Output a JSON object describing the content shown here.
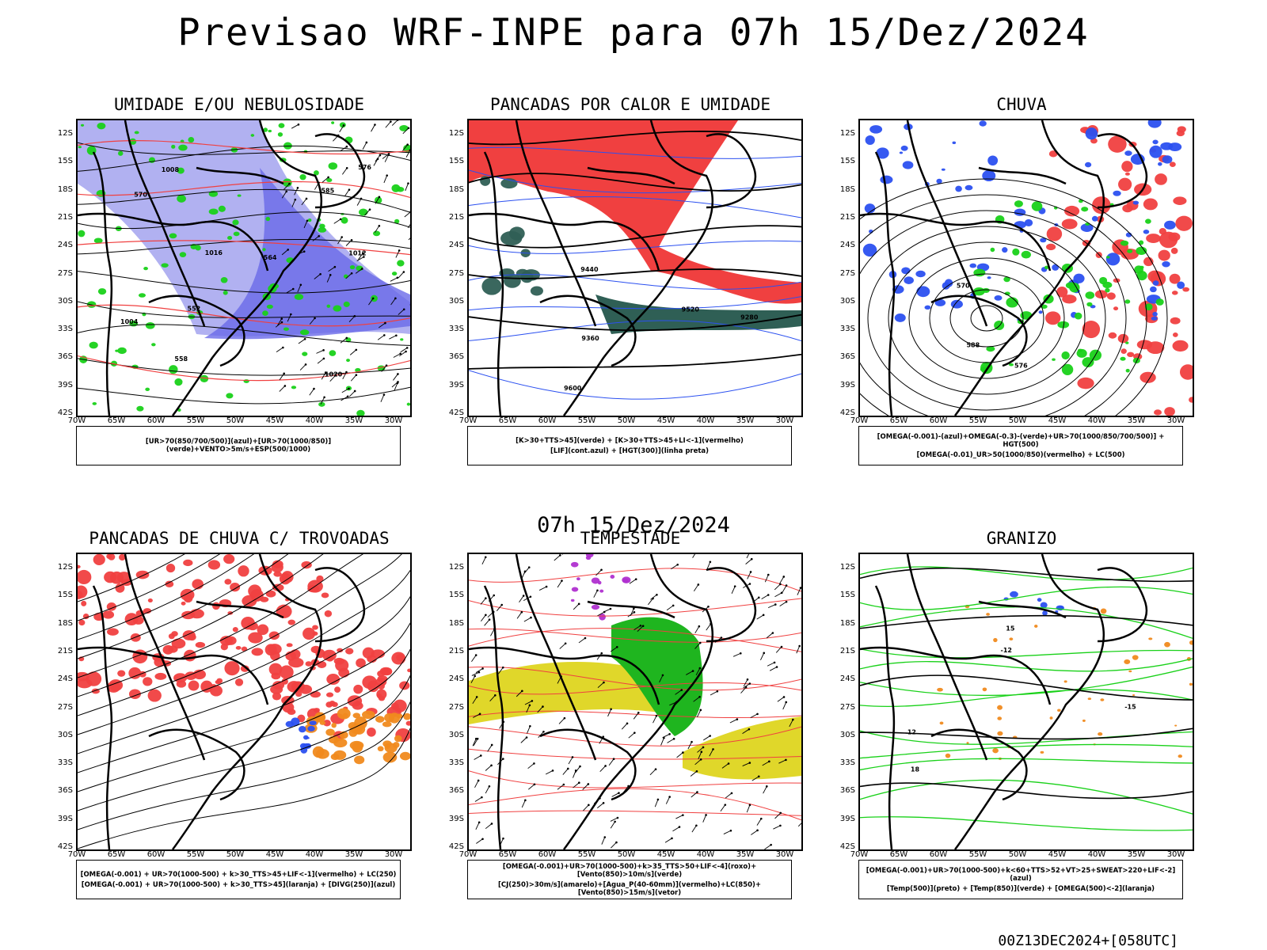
{
  "header": {
    "title": "Previsao WRF-INPE  para 07h 15/Dez/2024",
    "subtitle": "07h 15/Dez/2024",
    "footer": "00Z13DEC2024+[058UTC]"
  },
  "axes": {
    "lat": [
      "12S",
      "15S",
      "18S",
      "21S",
      "24S",
      "27S",
      "30S",
      "33S",
      "36S",
      "39S",
      "42S"
    ],
    "lon": [
      "70W",
      "65W",
      "60W",
      "55W",
      "50W",
      "45W",
      "40W",
      "35W",
      "30W"
    ]
  },
  "colors": {
    "blue": "#2b50f0",
    "lightblue": "#a8a8f0",
    "green": "#19d119",
    "red": "#f04040",
    "darkgreen": "#2f5f55",
    "yellow": "#e0d72a",
    "orange": "#f08a1e",
    "purple": "#b030d0"
  },
  "panels": [
    {
      "title": "UMIDADE E/OU NEBULOSIDADE",
      "legend": [
        "[UR>70(850/700/500)](azul)+[UR>70(1000/850)](verde)+VENTO>5m/s+ESP(500/1000)"
      ],
      "labels": [
        "1008",
        "1012",
        "1016",
        "1020",
        "1004",
        "570",
        "564",
        "558",
        "552",
        "576",
        "585"
      ]
    },
    {
      "title": "PANCADAS POR CALOR E UMIDADE",
      "legend": [
        "[K>30+TTS>45](verde) + [K>30+TTS>45+LI<-1](vermelho)",
        "[LIF](cont.azul) + [HGT(300)](linha preta)"
      ],
      "labels": [
        "9600",
        "9520",
        "9440",
        "9360",
        "9280"
      ]
    },
    {
      "title": "CHUVA",
      "legend": [
        "[OMEGA(-0.001)-(azul)+OMEGA(-0.3)-(verde)+UR>70(1000/850/700/500)] + HGT(500)",
        "[OMEGA(-0.01)_UR>50(1000/850)(vermelho) + LC(500)"
      ],
      "labels": [
        "588",
        "576",
        "570"
      ]
    },
    {
      "title": "PANCADAS DE CHUVA C/ TROVOADAS",
      "legend": [
        "[OMEGA(-0.001) + UR>70(1000-500) + k>30_TTS>45+LIF<-1](vermelho) + LC(250)",
        "[OMEGA(-0.001) + UR>70(1000-500) + k>30_TTS>45](laranja) + [DIVG(250)](azul)"
      ],
      "labels": []
    },
    {
      "title": "TEMPESTADE",
      "legend": [
        "[OMEGA(-0.001)+UR>70(1000-500)+k>35_TTS>50+LIF<-4](roxo)+[Vento(850)>10m/s](verde)",
        "[CJ(250)>30m/s](amarelo)+[Agua_P(40-60mm)](vermelho)+LC(850)+[Vento(850)>15m/s](vetor)"
      ],
      "labels": []
    },
    {
      "title": "GRANIZO",
      "legend": [
        "[OMEGA(-0.001)+UR>70(1000-500)+k<60+TTS>52+VT>25+SWEAT>220+LIF<-2](azul)",
        "[Temp(500)](preto) + [Temp(850)](verde) + [OMEGA(500)<-2](laranja)"
      ],
      "labels": [
        "-12",
        "-15",
        "18",
        "15",
        "12"
      ]
    }
  ]
}
